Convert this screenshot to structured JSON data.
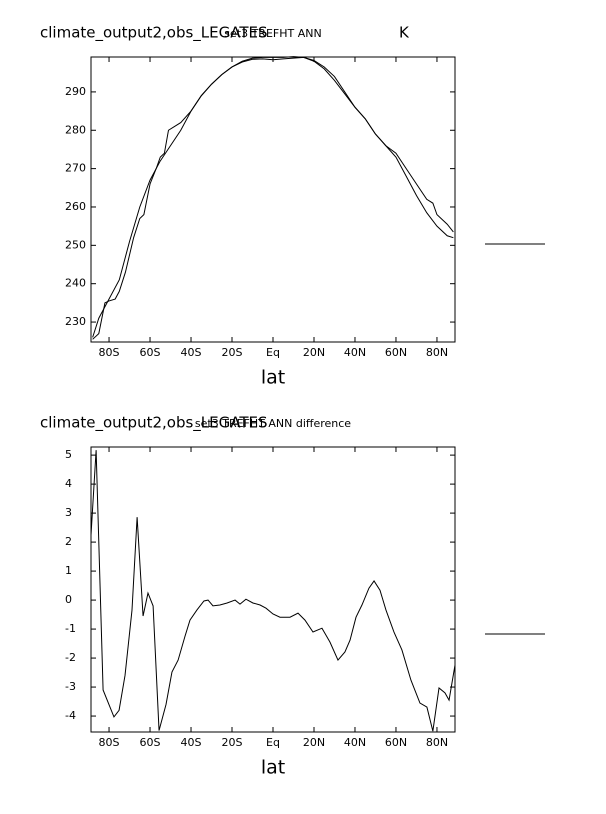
{
  "chart_data": [
    {
      "type": "line",
      "title": "climate_output2,obs_LEGATES",
      "subtitle": "set3 TREFHT ANN",
      "units": "K",
      "xlabel": "lat",
      "xlim": [
        -88.8,
        88.8
      ],
      "ylim": [
        224.8,
        299.1
      ],
      "xticks": [
        {
          "value": -80,
          "label": "80S"
        },
        {
          "value": -60,
          "label": "60S"
        },
        {
          "value": -40,
          "label": "40S"
        },
        {
          "value": -20,
          "label": "20S"
        },
        {
          "value": 0,
          "label": "Eq"
        },
        {
          "value": 20,
          "label": "20N"
        },
        {
          "value": 40,
          "label": "40N"
        },
        {
          "value": 60,
          "label": "60N"
        },
        {
          "value": 80,
          "label": "80N"
        }
      ],
      "yticks": [
        230,
        240,
        250,
        260,
        270,
        280,
        290
      ],
      "series": [
        {
          "color": "#000000",
          "x": [
            -88,
            -85,
            -80,
            -75,
            -70,
            -65,
            -60,
            -55,
            -50,
            -45,
            -40,
            -35,
            -30,
            -25,
            -20,
            -15,
            -10,
            -5,
            0,
            5,
            10,
            15,
            20,
            25,
            30,
            35,
            40,
            45,
            50,
            55,
            60,
            65,
            70,
            75,
            80,
            85,
            88
          ],
          "values": [
            226,
            231,
            236,
            241,
            251,
            260,
            267,
            272,
            276,
            280,
            285,
            289,
            292,
            294.5,
            296.5,
            298,
            298.8,
            299,
            299,
            299,
            299.2,
            299,
            298,
            296,
            293,
            289.5,
            286,
            283,
            279,
            276,
            273,
            268,
            263,
            258.5,
            255,
            252.5,
            252
          ]
        },
        {
          "color": "#000000",
          "x": [
            -88,
            -85,
            -82,
            -80,
            -77,
            -75,
            -72,
            -68,
            -65,
            -63,
            -60,
            -57,
            -55,
            -53,
            -51,
            -45,
            -40,
            -35,
            -30,
            -25,
            -20,
            -15,
            -10,
            -5,
            0,
            5,
            10,
            15,
            20,
            25,
            30,
            35,
            40,
            45,
            50,
            55,
            60,
            65,
            70,
            75,
            78,
            80,
            85,
            88
          ],
          "values": [
            225.5,
            227,
            235,
            235.5,
            236,
            238,
            243,
            252,
            257,
            258,
            266,
            270,
            273,
            274,
            280,
            282,
            285,
            289,
            292,
            294.5,
            296.5,
            297.8,
            298.5,
            298.6,
            298.4,
            298.6,
            298.8,
            299,
            298.2,
            296.5,
            294,
            290,
            286,
            283,
            279,
            276,
            274,
            270,
            266,
            262,
            261,
            258,
            255.5,
            253.5
          ]
        }
      ]
    },
    {
      "type": "line",
      "title": "climate_output2,obs_LEGATES",
      "subtitle": "set3 TREFHT ANN difference",
      "xlabel": "lat",
      "xlim": [
        -88.8,
        88.8
      ],
      "ylim": [
        -4.55,
        5.28
      ],
      "xticks": [
        {
          "value": -80,
          "label": "80S"
        },
        {
          "value": -60,
          "label": "60S"
        },
        {
          "value": -40,
          "label": "40S"
        },
        {
          "value": -20,
          "label": "20S"
        },
        {
          "value": 0,
          "label": "Eq"
        },
        {
          "value": 20,
          "label": "20N"
        },
        {
          "value": 40,
          "label": "40N"
        },
        {
          "value": 60,
          "label": "60N"
        },
        {
          "value": 80,
          "label": "80N"
        }
      ],
      "yticks": [
        5,
        4,
        3,
        2,
        1,
        0,
        -1,
        -2,
        -3,
        -4
      ],
      "series": [
        {
          "color": "#000000",
          "x": [
            -88.8,
            -86.3,
            -82.9,
            -77.6,
            -75.1,
            -72.2,
            -68.8,
            -66.3,
            -63.4,
            -61,
            -58.5,
            -55.6,
            -52.2,
            -49.3,
            -46.3,
            -42.9,
            -40.5,
            -37.1,
            -33.7,
            -31.7,
            -29.3,
            -25.9,
            -22.4,
            -18.5,
            -16.1,
            -13.2,
            -9.8,
            -6.3,
            -3.4,
            0,
            3.4,
            8.3,
            12.2,
            15.6,
            19.5,
            23.9,
            27.8,
            31.7,
            35.1,
            37.6,
            40.5,
            43.4,
            46.8,
            49.3,
            52.2,
            55.1,
            59,
            62.9,
            67.3,
            71.7,
            75.1,
            78,
            81,
            83.9,
            85.9,
            88.8
          ],
          "values": [
            2.24,
            5.17,
            -3.1,
            -4.03,
            -3.8,
            -2.6,
            -0.35,
            2.86,
            -0.55,
            0.24,
            -0.2,
            -4.5,
            -3.6,
            -2.48,
            -2.07,
            -1.24,
            -0.69,
            -0.34,
            -0.03,
            0,
            -0.2,
            -0.17,
            -0.1,
            0,
            -0.14,
            0.03,
            -0.1,
            -0.17,
            -0.28,
            -0.48,
            -0.59,
            -0.59,
            -0.45,
            -0.69,
            -1.1,
            -0.97,
            -1.45,
            -2.07,
            -1.79,
            -1.38,
            -0.59,
            -0.17,
            0.41,
            0.66,
            0.34,
            -0.34,
            -1.1,
            -1.72,
            -2.76,
            -3.55,
            -3.69,
            -4.52,
            -3.03,
            -3.2,
            -3.45,
            -2.24
          ]
        }
      ]
    }
  ]
}
